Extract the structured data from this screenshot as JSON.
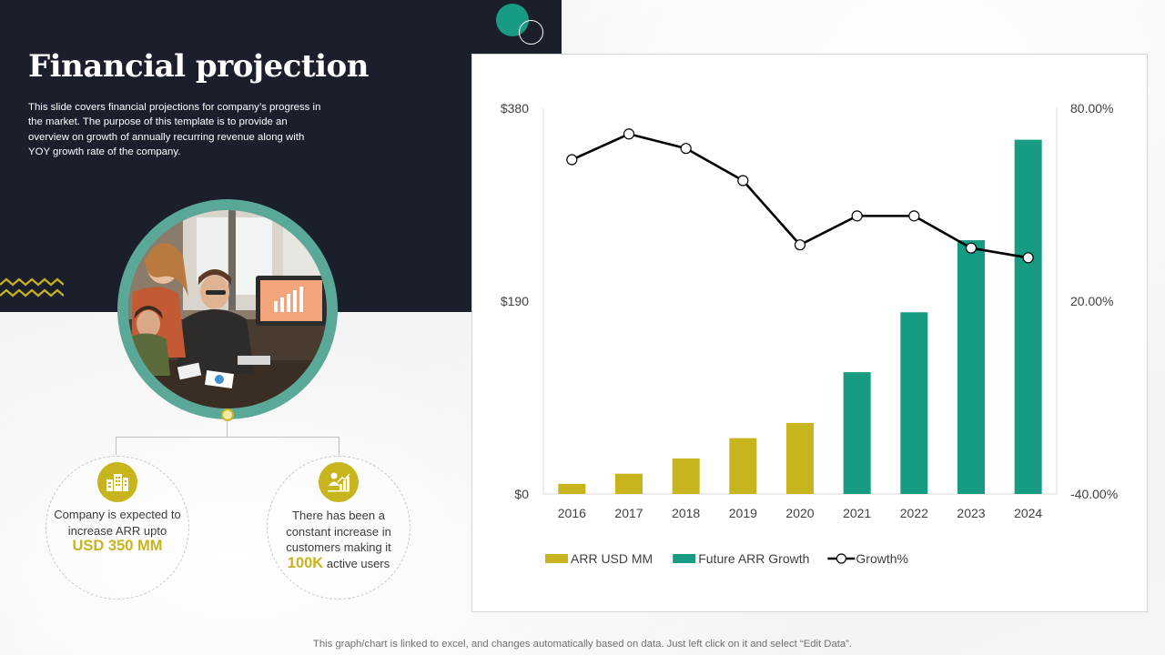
{
  "slide": {
    "title": "Financial projection",
    "description": "This slide covers financial projections for company’s progress in the market. The purpose of this template is to provide an overview on growth of annually recurring revenue along with YOY growth rate of the company.",
    "footnote": "This graph/chart is linked to excel, and changes automatically based on data. Just left click on it and select “Edit Data”."
  },
  "icons": {
    "buildings": "buildings-icon",
    "growth_chart": "growth-chart-icon"
  },
  "colors": {
    "dark_panel": "#1b1f2b",
    "teal": "#179b82",
    "gold": "#c8b41d",
    "line": "#000000"
  },
  "info": [
    {
      "text_before": "Company is expected to increase ARR upto",
      "highlight": "USD 350 MM",
      "text_after": ""
    },
    {
      "text_before": "There has been a constant increase in customers making it",
      "highlight": "100K",
      "text_after": "active users"
    }
  ],
  "chart_data": {
    "type": "bar",
    "title": "",
    "categories": [
      "2016",
      "2017",
      "2018",
      "2019",
      "2020",
      "2021",
      "2022",
      "2023",
      "2024"
    ],
    "series": [
      {
        "name": "ARR USD MM",
        "type": "bar",
        "axis": "left",
        "color": "#c8b41d",
        "values": [
          10,
          20,
          35,
          55,
          70,
          null,
          null,
          null,
          null
        ]
      },
      {
        "name": "Future ARR Growth",
        "type": "bar",
        "axis": "left",
        "color": "#179b82",
        "values": [
          null,
          null,
          null,
          null,
          null,
          120,
          179,
          250,
          349
        ]
      },
      {
        "name": "Growth%",
        "type": "line",
        "axis": "right",
        "color": "#000000",
        "values": [
          64,
          72,
          67.5,
          57.5,
          37.5,
          46.5,
          46.5,
          36.5,
          33.5
        ]
      }
    ],
    "y_left": {
      "ylim": [
        0,
        380
      ],
      "ticks": [
        "$0",
        "$190",
        "$380"
      ]
    },
    "y_right": {
      "ylim": [
        -40,
        80
      ],
      "ticks": [
        "-40.00%",
        "20.00%",
        "80.00%"
      ]
    },
    "legend": {
      "position": "bottom"
    },
    "grid": false
  }
}
